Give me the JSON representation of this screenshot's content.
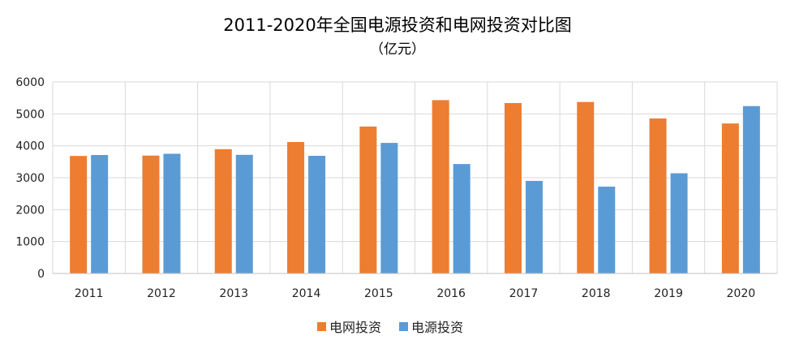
{
  "chart_data": {
    "type": "bar",
    "title": "2011-2020年全国电源投资和电网投资对比图",
    "subtitle": "（亿元）",
    "xlabel": "",
    "ylabel": "",
    "categories": [
      "2011",
      "2012",
      "2013",
      "2014",
      "2015",
      "2016",
      "2017",
      "2018",
      "2019",
      "2020"
    ],
    "ylim": [
      0,
      6000
    ],
    "yticks": [
      0,
      1000,
      2000,
      3000,
      4000,
      5000,
      6000
    ],
    "grid": true,
    "legend_position": "bottom-center",
    "series": [
      {
        "name": "电网投资",
        "color": "#ED7D31",
        "values": [
          3682,
          3693,
          3894,
          4118,
          4603,
          5431,
          5339,
          5373,
          4856,
          4699
        ]
      },
      {
        "name": "电源投资",
        "color": "#5B9BD5",
        "values": [
          3712,
          3751,
          3717,
          3686,
          4091,
          3429,
          2900,
          2721,
          3139,
          5244
        ]
      }
    ]
  }
}
